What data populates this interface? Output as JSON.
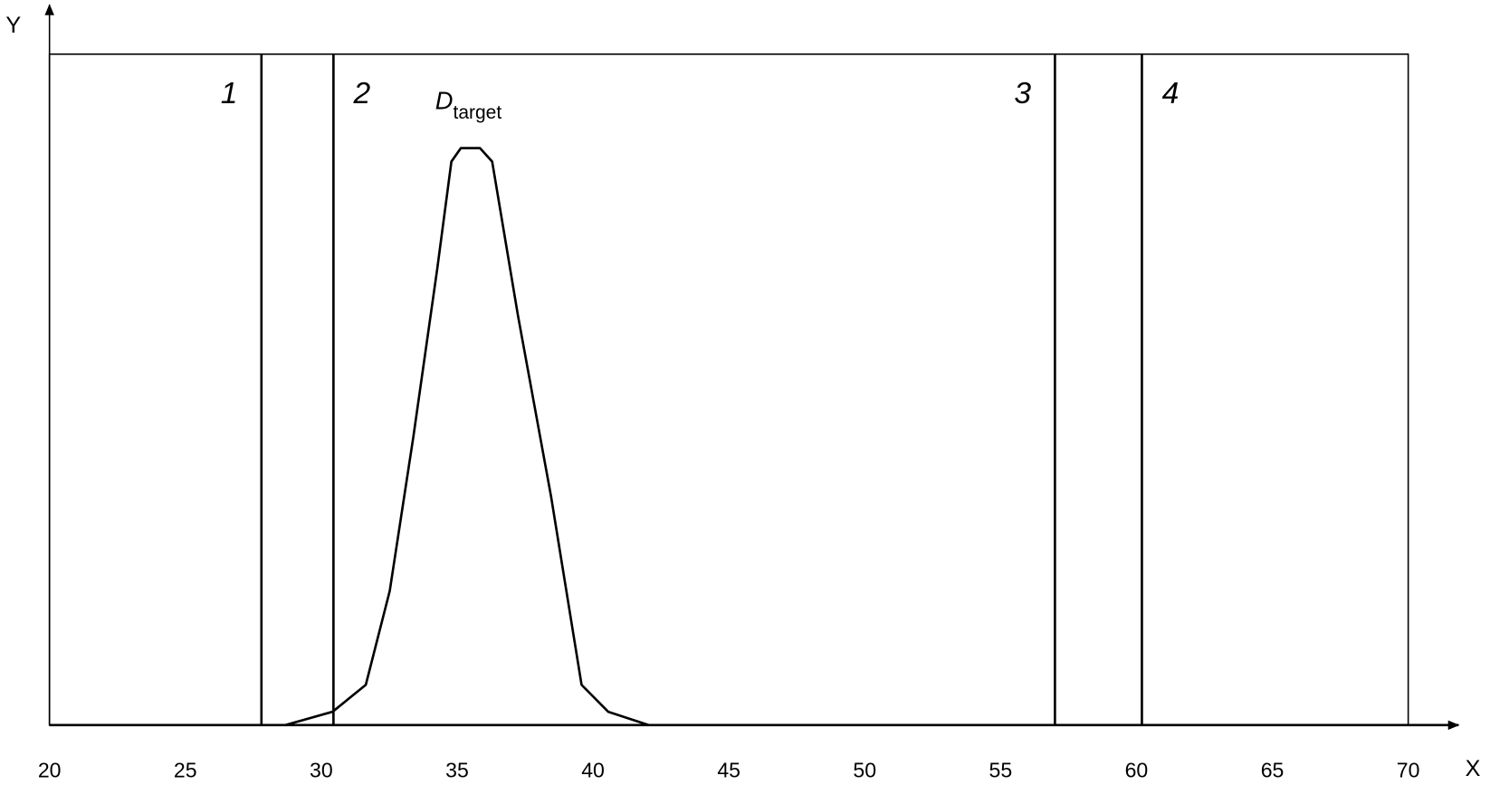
{
  "chart_data": {
    "type": "line",
    "x_label": "X",
    "y_label": "Y",
    "x": [
      28.67,
      30.42,
      31.64,
      32.52,
      33.39,
      34.27,
      34.79,
      35.14,
      35.84,
      36.29,
      37.24,
      38.46,
      39.58,
      40.56,
      42.06
    ],
    "values": [
      0,
      0.02,
      0.06,
      0.2,
      0.43,
      0.68,
      0.84,
      0.86,
      0.86,
      0.84,
      0.61,
      0.34,
      0.06,
      0.02,
      0
    ],
    "color": "#000000",
    "xlim": [
      20,
      70
    ],
    "ylim": [
      0,
      1
    ],
    "xticks": [
      20,
      25,
      30,
      35,
      40,
      45,
      50,
      55,
      60,
      65,
      70
    ],
    "curve_label": {
      "text": "D",
      "subscript": "target"
    },
    "markers": [
      {
        "label": "1",
        "x": 27.8
      },
      {
        "label": "2",
        "x": 30.45
      },
      {
        "label": "3",
        "x": 57.0
      },
      {
        "label": "4",
        "x": 60.2
      }
    ]
  }
}
